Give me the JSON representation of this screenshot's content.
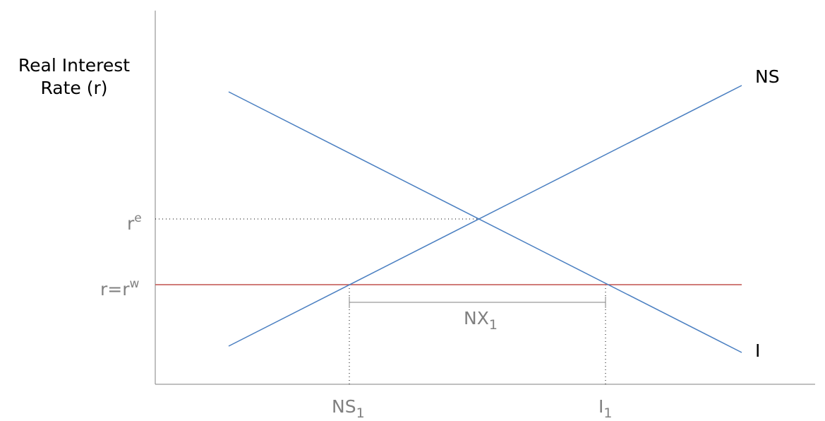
{
  "diagram": {
    "y_axis_label_line1": "Real Interest",
    "y_axis_label_line2": "Rate (r)",
    "curves": {
      "ns": {
        "label": "NS",
        "color": "#4a7fc1"
      },
      "i": {
        "label": "I",
        "color": "#4a7fc1"
      },
      "world_rate": {
        "color": "#c0504d"
      }
    },
    "y_ticks": {
      "re": {
        "base": "r",
        "sup": "e"
      },
      "rw": {
        "base": "r=r",
        "sup": "w"
      }
    },
    "x_ticks": {
      "ns1": {
        "base": "NS",
        "sub": "1"
      },
      "i1": {
        "base": "I",
        "sub": "1"
      }
    },
    "nx_bracket": {
      "base": "NX",
      "sub": "1"
    }
  }
}
